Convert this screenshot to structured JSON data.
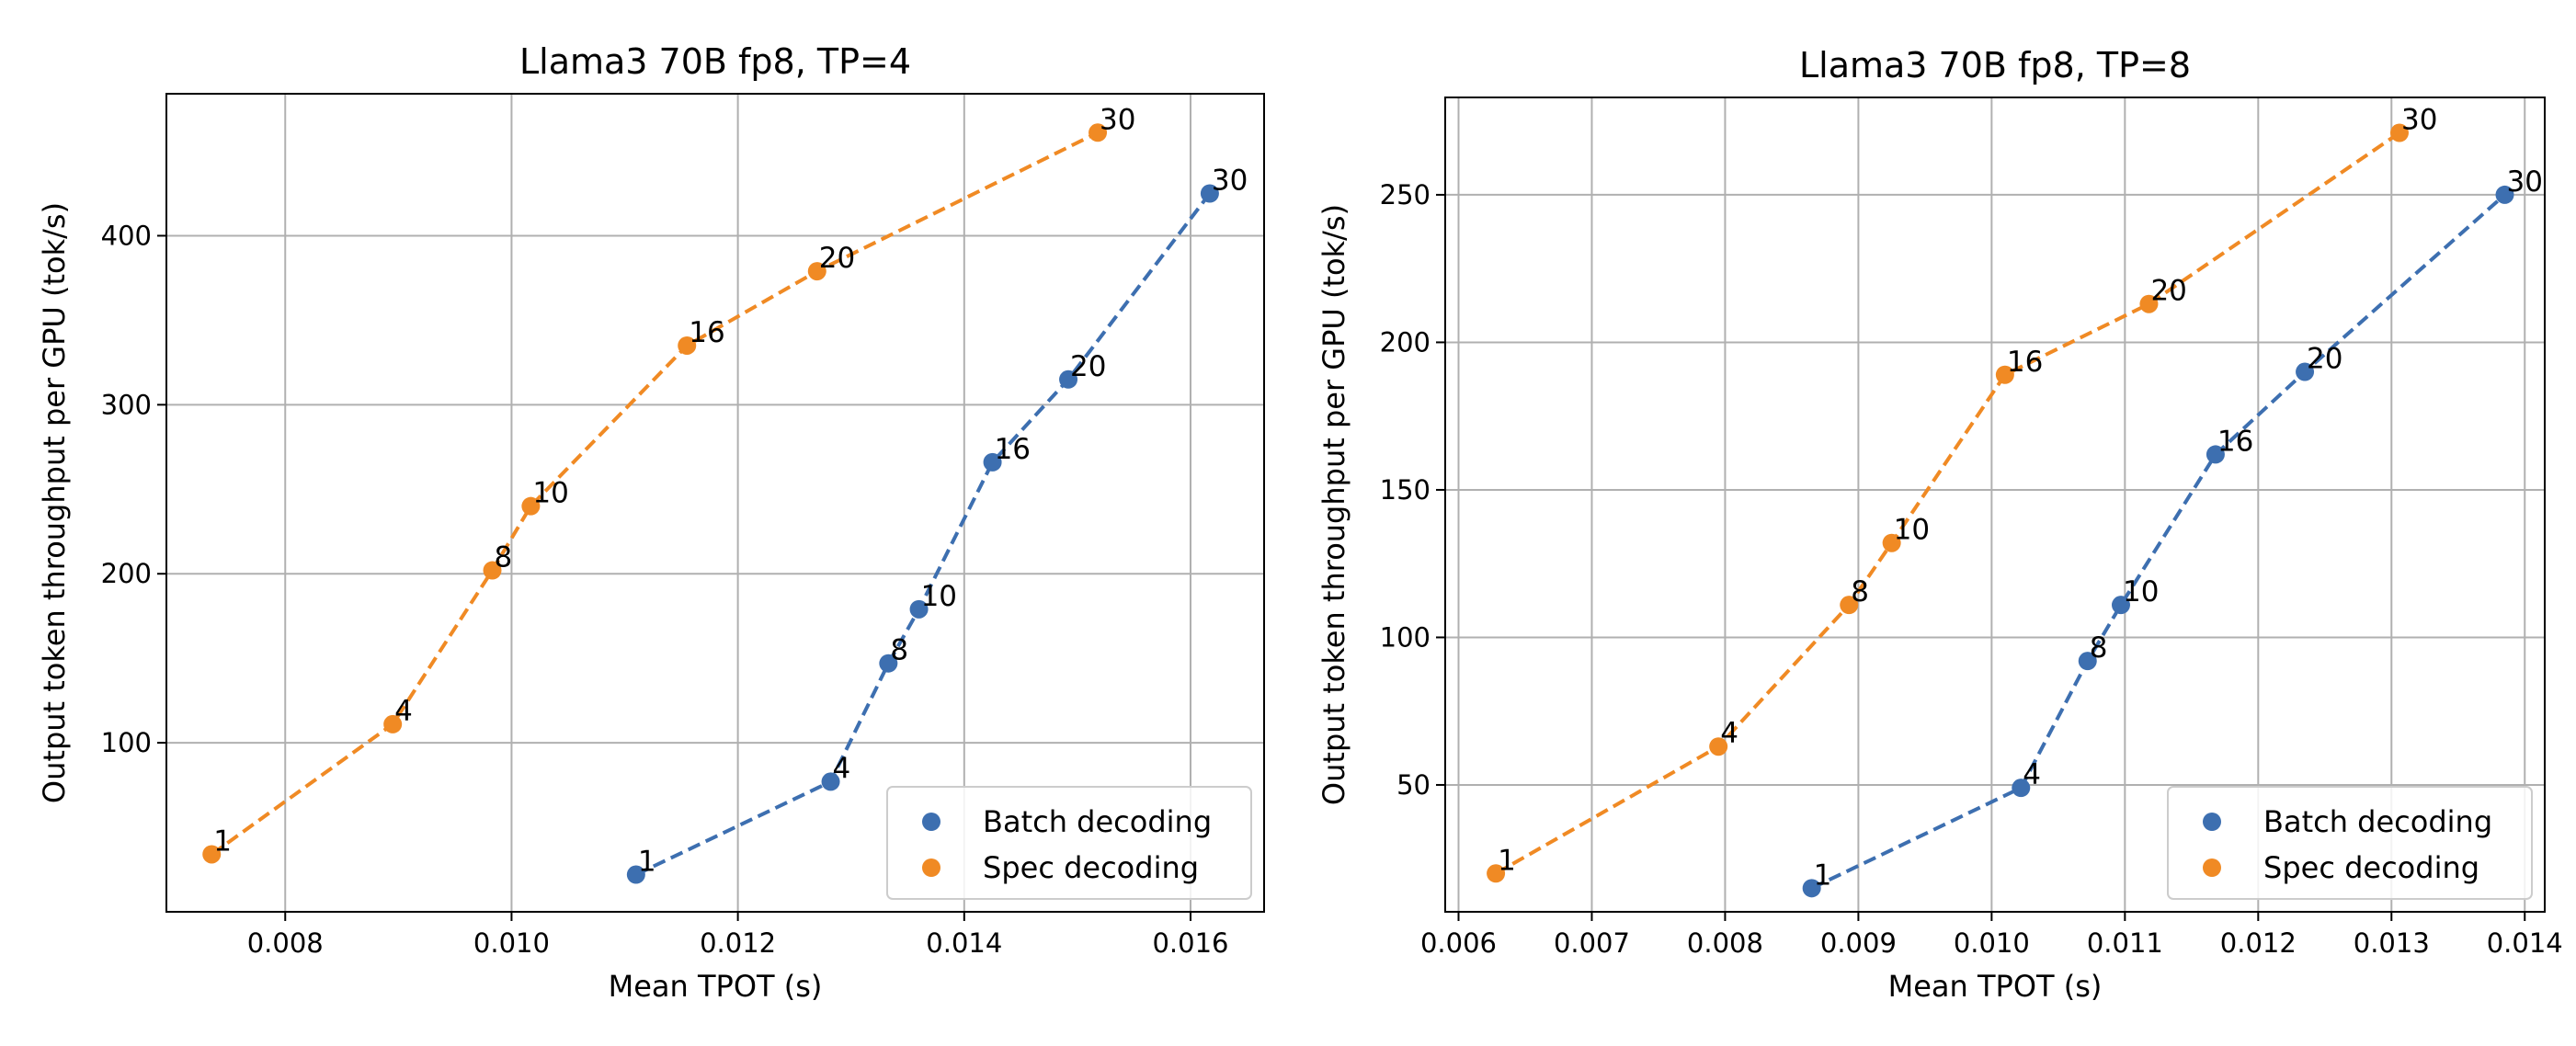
{
  "colors": {
    "batch": "#3d6fb0",
    "spec": "#f08a24"
  },
  "chart_data": [
    {
      "type": "line",
      "title": "Llama3 70B fp8, TP=4",
      "xlabel": "Mean TPOT (s)",
      "ylabel": "Output token throughput per GPU (tok/s)",
      "xlim": [
        0.00695,
        0.01665
      ],
      "ylim": [
        0,
        484
      ],
      "xticks": [
        0.008,
        0.01,
        0.012,
        0.014,
        0.016
      ],
      "xtick_labels": [
        "0.008",
        "0.010",
        "0.012",
        "0.014",
        "0.016"
      ],
      "yticks": [
        100,
        200,
        300,
        400
      ],
      "ytick_labels": [
        "100",
        "200",
        "300",
        "400"
      ],
      "legend_position": "lower-right",
      "grid": true,
      "series": [
        {
          "name": "Batch decoding",
          "color_key": "batch",
          "labels": [
            "1",
            "4",
            "8",
            "10",
            "16",
            "20",
            "30"
          ],
          "x": [
            0.0111,
            0.01282,
            0.01333,
            0.0136,
            0.01425,
            0.01492,
            0.01617
          ],
          "y": [
            22,
            77,
            147,
            179,
            266,
            315,
            425
          ]
        },
        {
          "name": "Spec decoding",
          "color_key": "spec",
          "labels": [
            "1",
            "4",
            "8",
            "10",
            "16",
            "20",
            "30"
          ],
          "x": [
            0.00735,
            0.00895,
            0.00983,
            0.01017,
            0.01155,
            0.0127,
            0.01518
          ],
          "y": [
            34,
            111,
            202,
            240,
            335,
            379,
            461
          ]
        }
      ]
    },
    {
      "type": "line",
      "title": "Llama3 70B fp8, TP=8",
      "xlabel": "Mean TPOT (s)",
      "ylabel": "Output token throughput per GPU (tok/s)",
      "xlim": [
        0.0059,
        0.01415
      ],
      "ylim": [
        7,
        283
      ],
      "xticks": [
        0.006,
        0.007,
        0.008,
        0.009,
        0.01,
        0.011,
        0.012,
        0.013,
        0.014
      ],
      "xtick_labels": [
        "0.006",
        "0.007",
        "0.008",
        "0.009",
        "0.010",
        "0.011",
        "0.012",
        "0.013",
        "0.014"
      ],
      "yticks": [
        50,
        100,
        150,
        200,
        250
      ],
      "ytick_labels": [
        "50",
        "100",
        "150",
        "200",
        "250"
      ],
      "legend_position": "lower-right",
      "grid": true,
      "series": [
        {
          "name": "Batch decoding",
          "color_key": "batch",
          "labels": [
            "1",
            "4",
            "8",
            "10",
            "16",
            "20",
            "30"
          ],
          "x": [
            0.00865,
            0.01022,
            0.01072,
            0.01097,
            0.01168,
            0.01235,
            0.01385
          ],
          "y": [
            15,
            49,
            92,
            111,
            162,
            190,
            250
          ]
        },
        {
          "name": "Spec decoding",
          "color_key": "spec",
          "labels": [
            "1",
            "4",
            "8",
            "10",
            "16",
            "20",
            "30"
          ],
          "x": [
            0.00628,
            0.00795,
            0.00893,
            0.00925,
            0.0101,
            0.01118,
            0.01306
          ],
          "y": [
            20,
            63,
            111,
            132,
            189,
            213,
            271
          ]
        }
      ]
    }
  ]
}
